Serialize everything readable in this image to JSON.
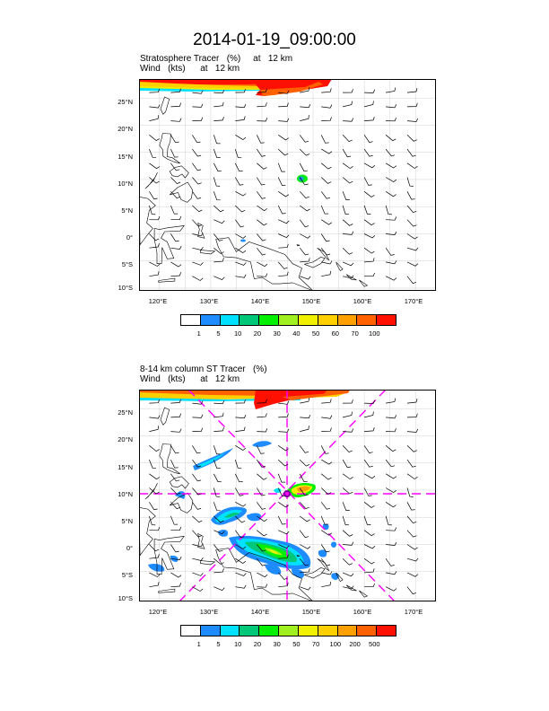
{
  "title": "2014-01-19_09:00:00",
  "panels": [
    {
      "subtitle1": "Stratosphere Tracer   (%)     at   12 km",
      "subtitle2": "Wind   (kts)      at   12 km",
      "lat_labels": [
        "25°N",
        "20°N",
        "15°N",
        "10°N",
        "5°N",
        "0°",
        "5°S",
        "10°S"
      ],
      "lon_labels": [
        "120°E",
        "130°E",
        "140°E",
        "150°E",
        "160°E",
        "170°E"
      ],
      "colorbar": {
        "labels": [
          "1",
          "5",
          "10",
          "20",
          "30",
          "40",
          "50",
          "60",
          "70",
          "100"
        ],
        "colors": [
          "#ffffff",
          "#1e8cff",
          "#00e0ff",
          "#00c878",
          "#00f000",
          "#a0f020",
          "#f0f000",
          "#ffd000",
          "#ffa000",
          "#ff6000",
          "#ff1000"
        ]
      }
    },
    {
      "subtitle1": "8-14 km column ST Tracer   (%)",
      "subtitle2": "Wind   (kts)      at   12 km",
      "lat_labels": [
        "25°N",
        "20°N",
        "15°N",
        "10°N",
        "5°N",
        "0°",
        "5°S",
        "10°S"
      ],
      "lon_labels": [
        "120°E",
        "130°E",
        "140°E",
        "150°E",
        "160°E",
        "170°E"
      ],
      "colorbar": {
        "labels": [
          "1",
          "5",
          "10",
          "20",
          "30",
          "50",
          "70",
          "100",
          "200",
          "500"
        ],
        "colors": [
          "#ffffff",
          "#1e8cff",
          "#00e0ff",
          "#00c878",
          "#00f000",
          "#a0f020",
          "#f0f000",
          "#ffd000",
          "#ffa000",
          "#ff6000",
          "#ff1000"
        ]
      }
    }
  ],
  "map_extent": {
    "lon_min": 116,
    "lon_max": 174,
    "lat_min": -10.5,
    "lat_max": 28.5
  },
  "cross_section_color": "#ff00ff",
  "cross_section_center": {
    "lon": 145,
    "lat": 10
  }
}
